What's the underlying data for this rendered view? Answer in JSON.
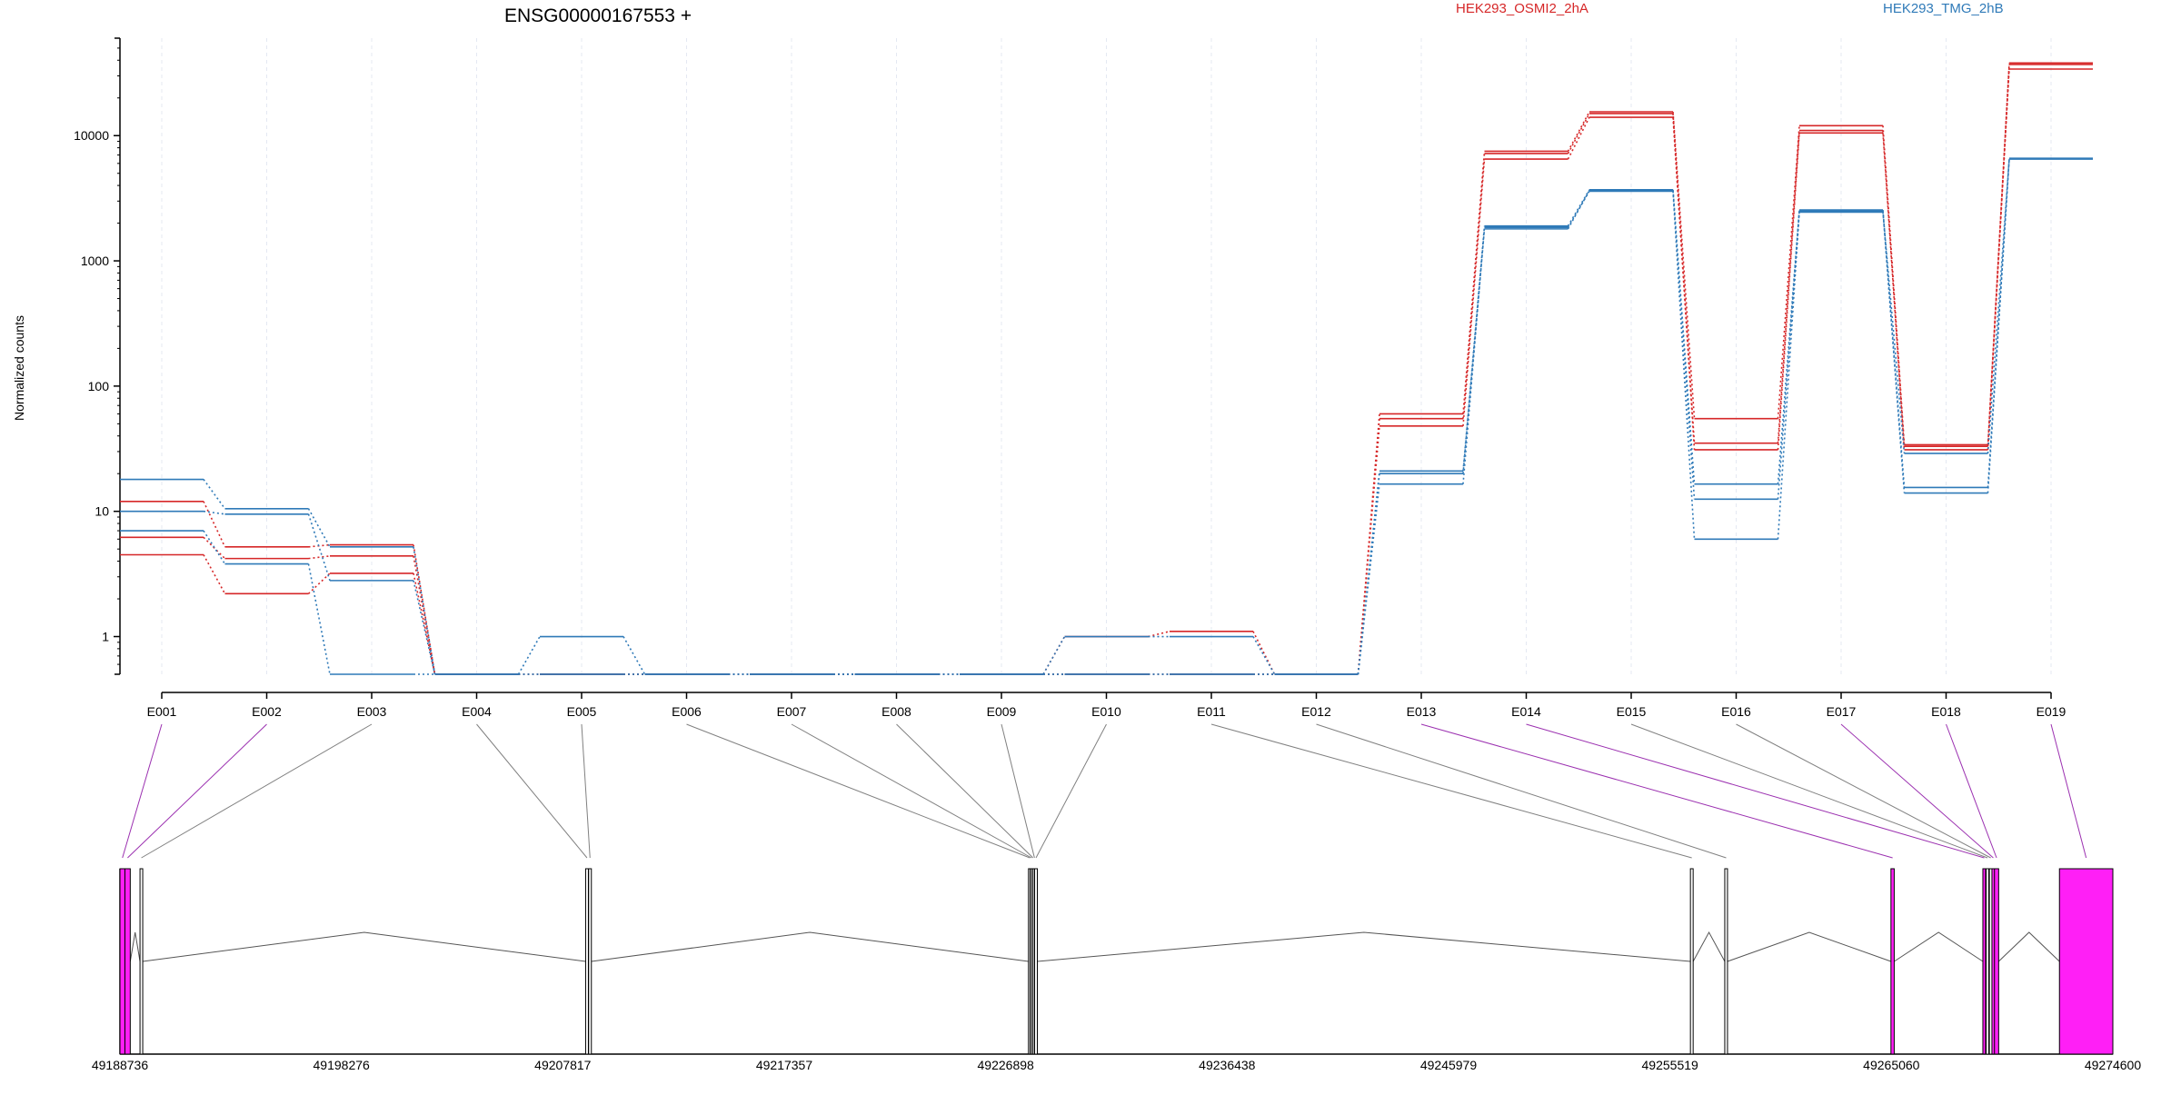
{
  "title": "ENSG00000167553 +",
  "ylabel": "Normalized counts",
  "legend": [
    {
      "name": "HEK293_OSMI2_2hA",
      "color": "#d62728"
    },
    {
      "name": "HEK293_TMG_2hB",
      "color": "#2f7ab8"
    }
  ],
  "colors": {
    "exon_highlight": "#ff1ff6",
    "exon_connector_highlight": "#9b30b0",
    "connector_plain": "#808080"
  },
  "chart_data": {
    "type": "line",
    "yscale": "log",
    "ylim": [
      0.5,
      60000
    ],
    "yticks": [
      1,
      10,
      100,
      1000,
      10000
    ],
    "ytick_labels": [
      "1",
      "10",
      "100",
      "1000",
      "10000"
    ],
    "categories": [
      "E001",
      "E002",
      "E003",
      "E004",
      "E005",
      "E006",
      "E007",
      "E008",
      "E009",
      "E010",
      "E011",
      "E012",
      "E013",
      "E014",
      "E015",
      "E016",
      "E017",
      "E018",
      "E019"
    ],
    "grid": "vertical",
    "legend_position": "top",
    "series": [
      {
        "group": 0,
        "values": [
          12,
          5.2,
          5.4,
          0.5,
          0.5,
          0.5,
          0.5,
          0.5,
          0.5,
          0.5,
          0.5,
          0.5,
          60,
          7500,
          15500,
          55,
          12000,
          34,
          38000
        ]
      },
      {
        "group": 0,
        "values": [
          6.2,
          4.2,
          4.4,
          0.5,
          0.5,
          0.5,
          0.5,
          0.5,
          0.5,
          1,
          1.1,
          0.5,
          55,
          7200,
          15000,
          35,
          11000,
          33,
          37000
        ]
      },
      {
        "group": 0,
        "values": [
          4.5,
          2.2,
          3.2,
          0.5,
          0.5,
          0.5,
          0.5,
          0.5,
          0.5,
          0.5,
          0.5,
          0.5,
          48,
          6500,
          14000,
          31,
          10500,
          31,
          34000
        ]
      },
      {
        "group": 1,
        "values": [
          18,
          10.5,
          5.2,
          0.5,
          0.5,
          0.5,
          0.5,
          0.5,
          0.5,
          0.5,
          0.5,
          0.5,
          21,
          1900,
          3700,
          16.5,
          2550,
          15.5,
          6600
        ]
      },
      {
        "group": 1,
        "values": [
          10,
          9.5,
          2.8,
          0.5,
          1,
          0.5,
          0.5,
          0.5,
          0.5,
          1,
          1,
          0.5,
          20,
          1800,
          3650,
          12.5,
          2500,
          14,
          6500
        ]
      },
      {
        "group": 1,
        "values": [
          7,
          3.8,
          0.5,
          0.5,
          0.5,
          0.5,
          0.5,
          0.5,
          0.5,
          0.5,
          0.5,
          0.5,
          16.5,
          1850,
          3600,
          6,
          2450,
          29,
          6550
        ]
      }
    ],
    "genomic_axis": {
      "range": [
        49188736,
        49274600
      ],
      "tick_labels": [
        "49188736",
        "49198276",
        "49207817",
        "49217357",
        "49226898",
        "49236438",
        "49245979",
        "49255519",
        "49265060",
        "49274600"
      ]
    },
    "exons": [
      {
        "id": "E001",
        "start": 49188736,
        "end": 49188950,
        "highlight": true
      },
      {
        "id": "E002",
        "start": 49188950,
        "end": 49189180,
        "highlight": true
      },
      {
        "id": "E003",
        "start": 49189600,
        "end": 49189710,
        "highlight": false
      },
      {
        "id": "E004",
        "start": 49208800,
        "end": 49208880,
        "highlight": false
      },
      {
        "id": "E005",
        "start": 49208930,
        "end": 49209020,
        "highlight": false
      },
      {
        "id": "E006",
        "start": 49227880,
        "end": 49227945,
        "highlight": false
      },
      {
        "id": "E007",
        "start": 49227950,
        "end": 49228010,
        "highlight": false
      },
      {
        "id": "E008",
        "start": 49228015,
        "end": 49228075,
        "highlight": false
      },
      {
        "id": "E009",
        "start": 49228080,
        "end": 49228140,
        "highlight": false
      },
      {
        "id": "E010",
        "start": 49228145,
        "end": 49228205,
        "highlight": false
      },
      {
        "id": "E011",
        "start": 49256400,
        "end": 49256480,
        "highlight": false
      },
      {
        "id": "E012",
        "start": 49257880,
        "end": 49257960,
        "highlight": false
      },
      {
        "id": "E013",
        "start": 49265040,
        "end": 49265180,
        "highlight": true
      },
      {
        "id": "E014",
        "start": 49269000,
        "end": 49269100,
        "highlight": true
      },
      {
        "id": "E015",
        "start": 49269140,
        "end": 49269230,
        "highlight": false
      },
      {
        "id": "E016",
        "start": 49269280,
        "end": 49269370,
        "highlight": false
      },
      {
        "id": "E017",
        "start": 49269390,
        "end": 49269470,
        "highlight": true
      },
      {
        "id": "E018",
        "start": 49269500,
        "end": 49269680,
        "highlight": true
      },
      {
        "id": "E019",
        "start": 49272300,
        "end": 49274600,
        "highlight": true
      }
    ]
  }
}
